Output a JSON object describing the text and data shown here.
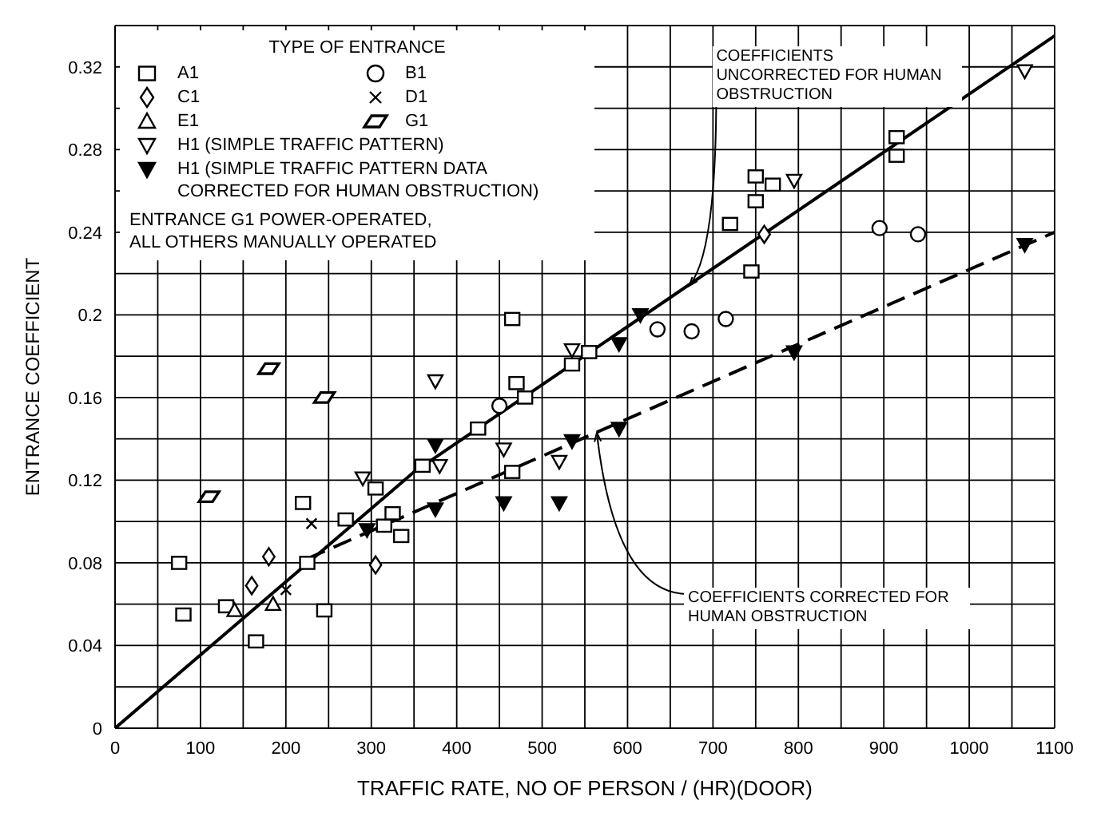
{
  "chart_data": {
    "type": "scatter",
    "xlabel": "TRAFFIC RATE, NO OF PERSON / (HR)(DOOR)",
    "ylabel": "ENTRANCE COEFFICIENT",
    "legend_title": "TYPE OF ENTRANCE",
    "legend": "top left",
    "grid": true,
    "xlim": [
      0,
      1100
    ],
    "ylim": [
      0,
      0.34
    ],
    "xticks": [
      0,
      {
        "value": 50,
        "label": null
      },
      100,
      {
        "value": 150,
        "label": null
      },
      200,
      {
        "value": 250,
        "label": null
      },
      300,
      {
        "value": 350,
        "label": null
      },
      400,
      {
        "value": 450,
        "label": null
      },
      500,
      {
        "value": 550,
        "label": null
      },
      600,
      {
        "value": 650,
        "label": null
      },
      700,
      {
        "value": 750,
        "label": null
      },
      800,
      {
        "value": 850,
        "label": null
      },
      900,
      {
        "value": 950,
        "label": null
      },
      1000,
      {
        "value": 1050,
        "label": null
      },
      1100
    ],
    "yticks": [
      0,
      {
        "value": 0.02,
        "label": null
      },
      0.04,
      {
        "value": 0.06,
        "label": null
      },
      0.08,
      {
        "value": 0.1,
        "label": null
      },
      0.12,
      {
        "value": 0.14,
        "label": null
      },
      0.16,
      {
        "value": 0.18,
        "label": null
      },
      0.2,
      {
        "value": 0.22,
        "label": null
      },
      0.24,
      {
        "value": 0.26,
        "label": null
      },
      0.28,
      {
        "value": 0.3,
        "label": null
      },
      0.32
    ],
    "series": [
      {
        "name": "A1",
        "color": "#000000",
        "marker": "square",
        "x": [
          75,
          80,
          130,
          165,
          220,
          225,
          245,
          270,
          315,
          325,
          335,
          305,
          360,
          465,
          555,
          535,
          470,
          480,
          425,
          465,
          915,
          915,
          750,
          770,
          750,
          720,
          745
        ],
        "values": [
          0.08,
          0.055,
          0.059,
          0.042,
          0.109,
          0.08,
          0.057,
          0.101,
          0.098,
          0.104,
          0.093,
          0.116,
          0.127,
          0.198,
          0.182,
          0.176,
          0.167,
          0.16,
          0.145,
          0.124,
          0.286,
          0.277,
          0.267,
          0.263,
          0.255,
          0.244,
          0.221
        ]
      },
      {
        "name": "B1",
        "color": "#000000",
        "marker": "circle",
        "x": [
          450,
          635,
          675,
          715,
          895,
          940
        ],
        "values": [
          0.156,
          0.193,
          0.192,
          0.198,
          0.242,
          0.239
        ]
      },
      {
        "name": "C1",
        "color": "#000000",
        "marker": "diamond",
        "x": [
          180,
          160,
          305,
          760
        ],
        "values": [
          0.083,
          0.069,
          0.079,
          0.239
        ]
      },
      {
        "name": "D1",
        "color": "#000000",
        "marker": "cross",
        "x": [
          230,
          200
        ],
        "values": [
          0.099,
          0.067
        ]
      },
      {
        "name": "E1",
        "color": "#000000",
        "marker": "triangle",
        "x": [
          140,
          185
        ],
        "values": [
          0.057,
          0.06
        ]
      },
      {
        "name": "G1",
        "color": "#000000",
        "x": [
          180,
          245,
          110
        ],
        "values": [
          0.174,
          0.16,
          0.112
        ]
      },
      {
        "name": "H1 (SIMPLE TRAFFIC PATTERN)",
        "color": "#000000",
        "marker": "triangle-down",
        "x": [
          290,
          380,
          375,
          535,
          455,
          520,
          795,
          1065
        ],
        "values": [
          0.121,
          0.127,
          0.168,
          0.183,
          0.135,
          0.129,
          0.265,
          0.318
        ]
      },
      {
        "name": "H1 (SIMPLE TRAFFIC PATTERN DATA CORRECTED FOR HUMAN OBSTRUCTION)",
        "color": "#000000",
        "marker": "triangle-down-filled",
        "x": [
          375,
          375,
          295,
          590,
          535,
          590,
          455,
          520,
          615,
          795,
          1065
        ],
        "values": [
          0.137,
          0.106,
          0.096,
          0.186,
          0.139,
          0.145,
          0.109,
          0.109,
          0.2,
          0.182,
          0.234
        ]
      },
      {
        "type": "line",
        "color": "#000000",
        "line_style": "solid",
        "marker": "none",
        "x": [
          0,
          350,
          1100
        ],
        "values": [
          0,
          0.124,
          0.335
        ]
      },
      {
        "type": "line",
        "color": "#000000",
        "line_style": "dashed",
        "marker": "none",
        "x": [
          225,
          1100
        ],
        "values": [
          0.082,
          0.24
        ]
      }
    ],
    "annotations": [
      {
        "text": "COEFFICIENTS UNCORRECTED FOR HUMAN OBSTRUCTION",
        "x": 672,
        "y": 0.214
      },
      {
        "text": "COEFFICIENTS CORRECTED FOR HUMAN OBSTRUCTION",
        "x": 564,
        "y": 0.143
      },
      "ENTRANCE G1 POWER-OPERATED, ALL OTHERS MANUALLY OPERATED"
    ]
  }
}
